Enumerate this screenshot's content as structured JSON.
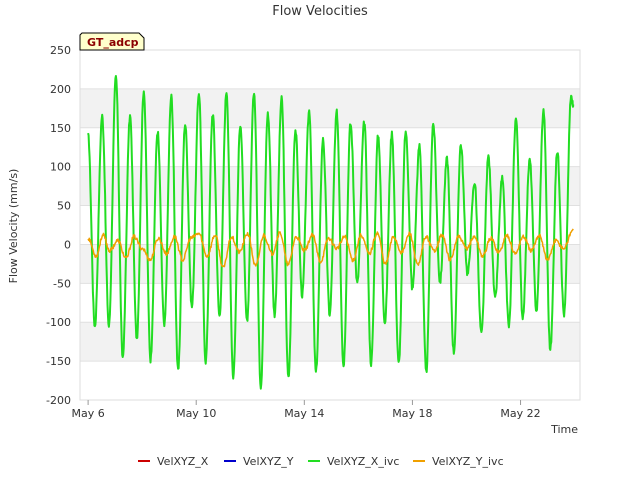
{
  "chart_data": {
    "type": "line",
    "title": "Flow Velocities",
    "xlabel": "Time",
    "ylabel": "Flow Velocity (mm/s)",
    "badge": "GT_adcp",
    "xlim_days": [
      5.7,
      24.2
    ],
    "ylim": [
      -200,
      250
    ],
    "y_ticks": [
      -200,
      -150,
      -100,
      -50,
      0,
      50,
      100,
      150,
      200,
      250
    ],
    "x_ticks": [
      {
        "day": 6,
        "label": "May 6"
      },
      {
        "day": 10,
        "label": "May 10"
      },
      {
        "day": 14,
        "label": "May 14"
      },
      {
        "day": 18,
        "label": "May 18"
      },
      {
        "day": 22,
        "label": "May 22"
      }
    ],
    "series": [
      {
        "name": "VelXYZ_X",
        "color": "#cc0000",
        "values": []
      },
      {
        "name": "VelXYZ_Y",
        "color": "#0000cc",
        "values": []
      },
      {
        "name": "VelXYZ_X_ivc",
        "color": "#22dd22",
        "peaks": [
          {
            "t": 6.0,
            "v": 140
          },
          {
            "t": 6.25,
            "v": -105
          },
          {
            "t": 6.52,
            "v": 165
          },
          {
            "t": 6.77,
            "v": -105
          },
          {
            "t": 7.03,
            "v": 215
          },
          {
            "t": 7.28,
            "v": -145
          },
          {
            "t": 7.55,
            "v": 165
          },
          {
            "t": 7.8,
            "v": -120
          },
          {
            "t": 8.06,
            "v": 198
          },
          {
            "t": 8.31,
            "v": -148
          },
          {
            "t": 8.57,
            "v": 145
          },
          {
            "t": 8.82,
            "v": -105
          },
          {
            "t": 9.08,
            "v": 190
          },
          {
            "t": 9.33,
            "v": -163
          },
          {
            "t": 9.59,
            "v": 155
          },
          {
            "t": 9.84,
            "v": -80
          },
          {
            "t": 10.1,
            "v": 195
          },
          {
            "t": 10.35,
            "v": -150
          },
          {
            "t": 10.61,
            "v": 168
          },
          {
            "t": 10.86,
            "v": -92
          },
          {
            "t": 11.12,
            "v": 197
          },
          {
            "t": 11.37,
            "v": -170
          },
          {
            "t": 11.63,
            "v": 155
          },
          {
            "t": 11.88,
            "v": -100
          },
          {
            "t": 12.14,
            "v": 197
          },
          {
            "t": 12.39,
            "v": -182
          },
          {
            "t": 12.65,
            "v": 168
          },
          {
            "t": 12.9,
            "v": -90
          },
          {
            "t": 13.16,
            "v": 187
          },
          {
            "t": 13.41,
            "v": -172
          },
          {
            "t": 13.67,
            "v": 147
          },
          {
            "t": 13.92,
            "v": -65
          },
          {
            "t": 14.18,
            "v": 172
          },
          {
            "t": 14.43,
            "v": -165
          },
          {
            "t": 14.69,
            "v": 135
          },
          {
            "t": 14.94,
            "v": -90
          },
          {
            "t": 15.2,
            "v": 170
          },
          {
            "t": 15.45,
            "v": -155
          },
          {
            "t": 15.71,
            "v": 155
          },
          {
            "t": 15.96,
            "v": -50
          },
          {
            "t": 16.22,
            "v": 157
          },
          {
            "t": 16.47,
            "v": -153
          },
          {
            "t": 16.73,
            "v": 140
          },
          {
            "t": 16.98,
            "v": -100
          },
          {
            "t": 17.24,
            "v": 143
          },
          {
            "t": 17.49,
            "v": -153
          },
          {
            "t": 17.75,
            "v": 145
          },
          {
            "t": 18.0,
            "v": -57
          },
          {
            "t": 18.26,
            "v": 127
          },
          {
            "t": 18.51,
            "v": -165
          },
          {
            "t": 18.77,
            "v": 155
          },
          {
            "t": 19.02,
            "v": -48
          },
          {
            "t": 19.28,
            "v": 110
          },
          {
            "t": 19.53,
            "v": -138
          },
          {
            "t": 19.79,
            "v": 128
          },
          {
            "t": 20.04,
            "v": -38
          },
          {
            "t": 20.3,
            "v": 80
          },
          {
            "t": 20.55,
            "v": -115
          },
          {
            "t": 20.81,
            "v": 113
          },
          {
            "t": 21.06,
            "v": -70
          },
          {
            "t": 21.32,
            "v": 85
          },
          {
            "t": 21.57,
            "v": -105
          },
          {
            "t": 21.83,
            "v": 162
          },
          {
            "t": 22.08,
            "v": -93
          },
          {
            "t": 22.34,
            "v": 108
          },
          {
            "t": 22.59,
            "v": -85
          },
          {
            "t": 22.85,
            "v": 172
          },
          {
            "t": 23.1,
            "v": -135
          },
          {
            "t": 23.36,
            "v": 120
          },
          {
            "t": 23.61,
            "v": -90
          },
          {
            "t": 23.87,
            "v": 190
          },
          {
            "t": 23.95,
            "v": 180
          }
        ]
      },
      {
        "name": "VelXYZ_Y_ivc",
        "color": "#f0a000",
        "peaks": [
          {
            "t": 6.0,
            "v": 8
          },
          {
            "t": 6.3,
            "v": -15
          },
          {
            "t": 6.55,
            "v": 12
          },
          {
            "t": 6.8,
            "v": -8
          },
          {
            "t": 7.1,
            "v": 5
          },
          {
            "t": 7.4,
            "v": -18
          },
          {
            "t": 7.7,
            "v": 10
          },
          {
            "t": 8.0,
            "v": -5
          },
          {
            "t": 8.3,
            "v": -20
          },
          {
            "t": 8.6,
            "v": 8
          },
          {
            "t": 8.9,
            "v": -12
          },
          {
            "t": 9.2,
            "v": 10
          },
          {
            "t": 9.5,
            "v": -20
          },
          {
            "t": 9.8,
            "v": 8
          },
          {
            "t": 10.1,
            "v": 14
          },
          {
            "t": 10.4,
            "v": -15
          },
          {
            "t": 10.7,
            "v": 12
          },
          {
            "t": 11.0,
            "v": -30
          },
          {
            "t": 11.3,
            "v": 10
          },
          {
            "t": 11.6,
            "v": -10
          },
          {
            "t": 11.9,
            "v": 14
          },
          {
            "t": 12.2,
            "v": -28
          },
          {
            "t": 12.5,
            "v": 12
          },
          {
            "t": 12.8,
            "v": -12
          },
          {
            "t": 13.1,
            "v": 15
          },
          {
            "t": 13.4,
            "v": -26
          },
          {
            "t": 13.7,
            "v": 10
          },
          {
            "t": 14.0,
            "v": -8
          },
          {
            "t": 14.3,
            "v": 12
          },
          {
            "t": 14.6,
            "v": -22
          },
          {
            "t": 14.9,
            "v": 8
          },
          {
            "t": 15.2,
            "v": -5
          },
          {
            "t": 15.5,
            "v": 10
          },
          {
            "t": 15.8,
            "v": -20
          },
          {
            "t": 16.1,
            "v": 12
          },
          {
            "t": 16.4,
            "v": -12
          },
          {
            "t": 16.7,
            "v": 15
          },
          {
            "t": 17.0,
            "v": -25
          },
          {
            "t": 17.3,
            "v": 10
          },
          {
            "t": 17.6,
            "v": -10
          },
          {
            "t": 17.9,
            "v": 14
          },
          {
            "t": 18.2,
            "v": -27
          },
          {
            "t": 18.5,
            "v": 10
          },
          {
            "t": 18.8,
            "v": -8
          },
          {
            "t": 19.1,
            "v": 12
          },
          {
            "t": 19.4,
            "v": -20
          },
          {
            "t": 19.7,
            "v": 10
          },
          {
            "t": 20.0,
            "v": -5
          },
          {
            "t": 20.3,
            "v": 10
          },
          {
            "t": 20.6,
            "v": -15
          },
          {
            "t": 20.9,
            "v": 8
          },
          {
            "t": 21.2,
            "v": -10
          },
          {
            "t": 21.5,
            "v": 12
          },
          {
            "t": 21.8,
            "v": -12
          },
          {
            "t": 22.1,
            "v": 10
          },
          {
            "t": 22.4,
            "v": -8
          },
          {
            "t": 22.7,
            "v": 12
          },
          {
            "t": 23.0,
            "v": -20
          },
          {
            "t": 23.3,
            "v": 5
          },
          {
            "t": 23.6,
            "v": -5
          },
          {
            "t": 23.95,
            "v": 20
          }
        ]
      }
    ],
    "legend_position": "bottom-center"
  }
}
